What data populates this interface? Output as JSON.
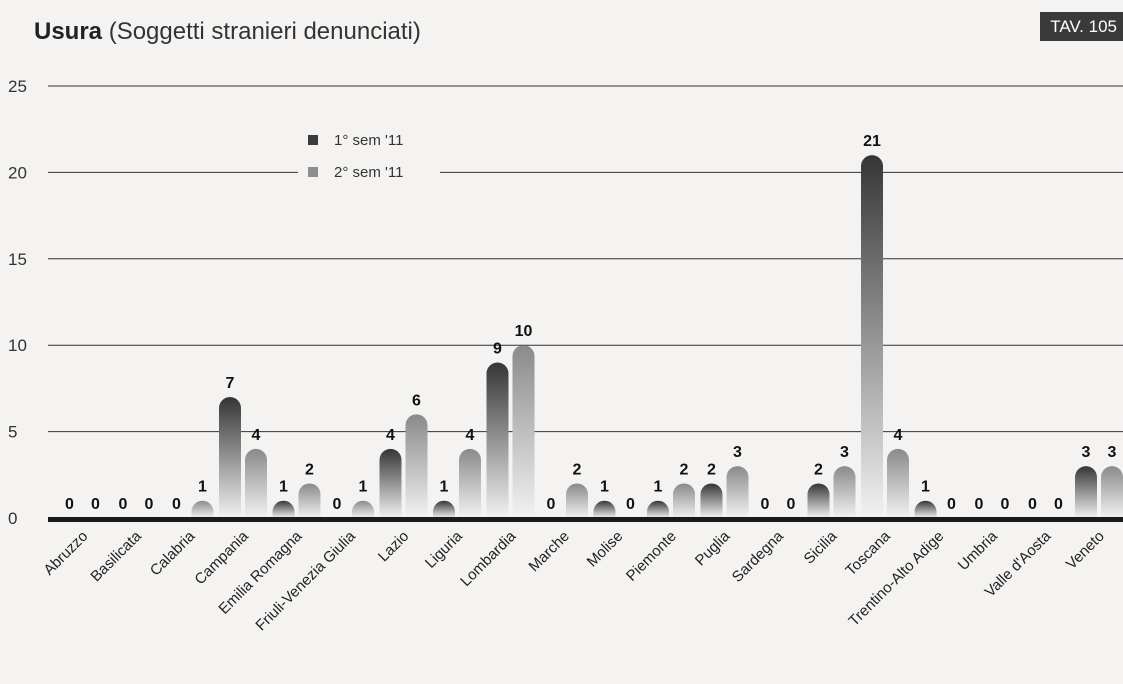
{
  "header": {
    "title_bold": "Usura",
    "title_rest": "(Soggetti stranieri denunciati)",
    "tav_label": "TAV. 105"
  },
  "colors": {
    "series1": "#3c3c3c",
    "series2": "#8e8e8e",
    "grid": "#333333",
    "background": "#f4f3f1"
  },
  "chart_data": {
    "type": "bar",
    "title": "Usura (Soggetti stranieri denunciati)",
    "xlabel": "",
    "ylabel": "",
    "ylim": [
      0,
      25
    ],
    "yticks": [
      0,
      5,
      10,
      15,
      20,
      25
    ],
    "grid": true,
    "legend_position": "top-left",
    "categories": [
      "Abruzzo",
      "Basilicata",
      "Calabria",
      "Campania",
      "Emilia Romagna",
      "Friuli-Venezia Giulia",
      "Lazio",
      "Liguria",
      "Lombardia",
      "Marche",
      "Molise",
      "Piemonte",
      "Puglia",
      "Sardegna",
      "Sicilia",
      "Toscana",
      "Trentino-Alto Adige",
      "Umbria",
      "Valle d'Aosta",
      "Veneto"
    ],
    "series": [
      {
        "name": "1° sem '11",
        "values": [
          0,
          0,
          0,
          7,
          1,
          0,
          4,
          1,
          9,
          0,
          1,
          1,
          2,
          0,
          2,
          21,
          1,
          0,
          0,
          3
        ]
      },
      {
        "name": "2° sem '11",
        "values": [
          0,
          0,
          1,
          4,
          2,
          1,
          6,
          4,
          10,
          2,
          0,
          2,
          3,
          0,
          3,
          4,
          0,
          0,
          0,
          3
        ]
      }
    ]
  }
}
